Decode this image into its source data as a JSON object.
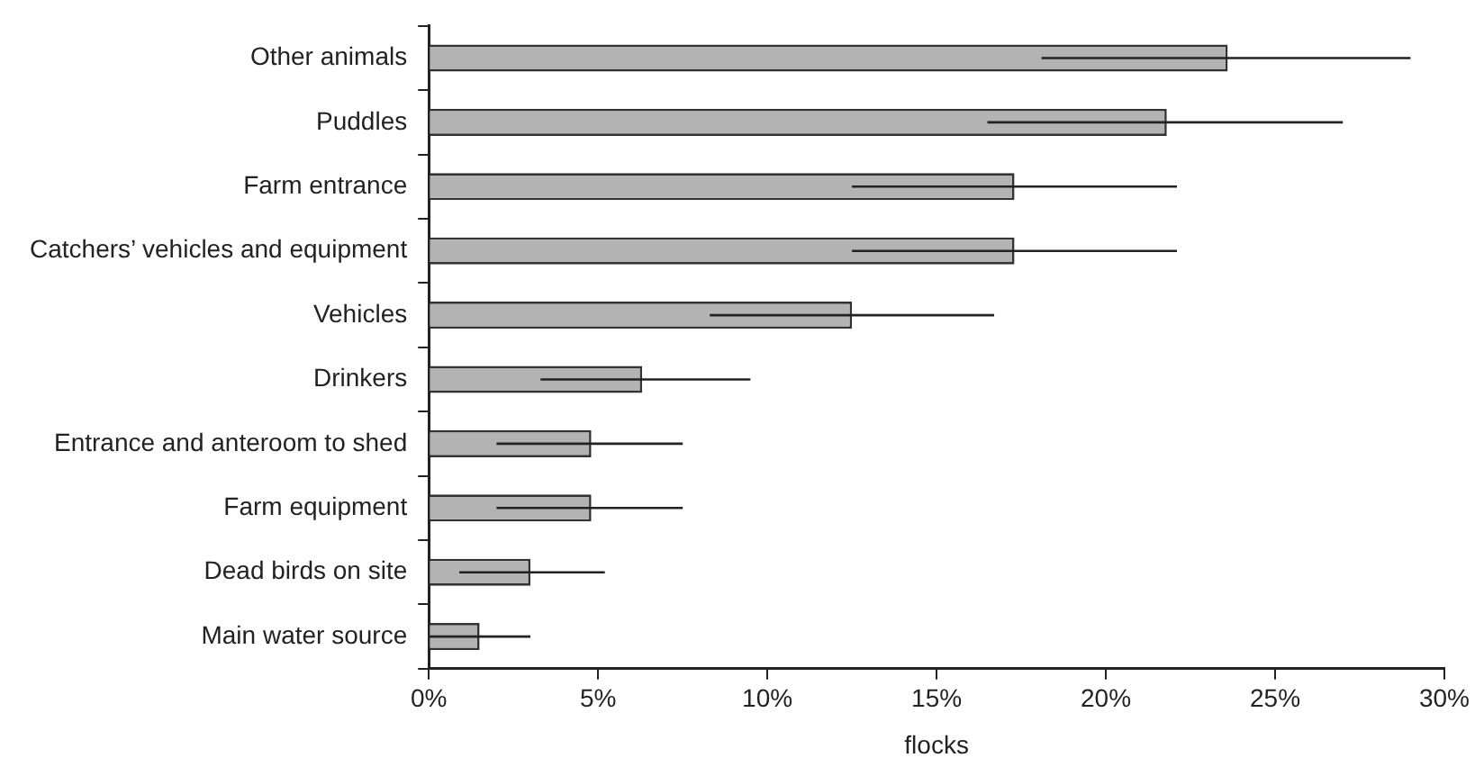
{
  "chart_data": {
    "type": "bar",
    "orientation": "horizontal",
    "xlabel": "flocks",
    "categories": [
      "Other animals",
      "Puddles",
      "Farm entrance",
      "Catchers’ vehicles and equipment",
      "Vehicles",
      "Drinkers",
      "Entrance and anteroom to shed",
      "Farm equipment",
      "Dead birds on site",
      "Main water source"
    ],
    "values": [
      23.6,
      21.8,
      17.3,
      17.3,
      12.5,
      6.3,
      4.8,
      4.8,
      3.0,
      1.5
    ],
    "errors": [
      [
        18.1,
        29.0
      ],
      [
        16.5,
        27.0
      ],
      [
        12.5,
        22.1
      ],
      [
        12.5,
        22.1
      ],
      [
        8.3,
        16.7
      ],
      [
        3.3,
        9.5
      ],
      [
        2.0,
        7.5
      ],
      [
        2.0,
        7.5
      ],
      [
        0.9,
        5.2
      ],
      [
        0,
        3.0
      ]
    ],
    "color": "#b3b3b3",
    "xlim": [
      0,
      30
    ],
    "xticks": [
      {
        "value": 0,
        "label": "0%"
      },
      {
        "value": 5,
        "label": "5%"
      },
      {
        "value": 10,
        "label": "10%"
      },
      {
        "value": 15,
        "label": "15%"
      },
      {
        "value": 20,
        "label": "20%"
      },
      {
        "value": 25,
        "label": "25%"
      },
      {
        "value": 30,
        "label": "30%"
      }
    ],
    "grid": false,
    "legend": false
  }
}
